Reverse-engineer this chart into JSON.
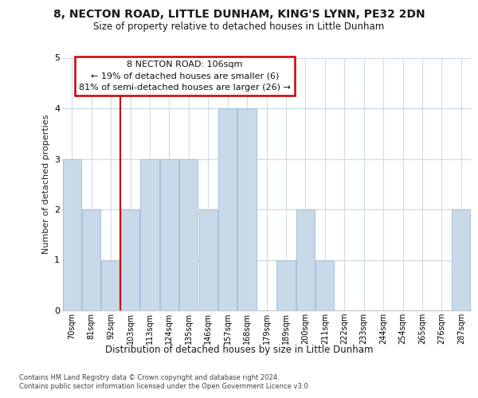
{
  "title1": "8, NECTON ROAD, LITTLE DUNHAM, KING'S LYNN, PE32 2DN",
  "title2": "Size of property relative to detached houses in Little Dunham",
  "xlabel": "Distribution of detached houses by size in Little Dunham",
  "ylabel": "Number of detached properties",
  "bins": [
    "70sqm",
    "81sqm",
    "92sqm",
    "103sqm",
    "113sqm",
    "124sqm",
    "135sqm",
    "146sqm",
    "157sqm",
    "168sqm",
    "179sqm",
    "189sqm",
    "200sqm",
    "211sqm",
    "222sqm",
    "233sqm",
    "244sqm",
    "254sqm",
    "265sqm",
    "276sqm",
    "287sqm"
  ],
  "values": [
    3,
    2,
    1,
    2,
    3,
    3,
    3,
    2,
    4,
    4,
    0,
    1,
    2,
    1,
    0,
    0,
    0,
    0,
    0,
    0,
    2
  ],
  "bar_color": "#c8daea",
  "bar_edge_color": "#a8c0d8",
  "property_line_bin": 3,
  "annotation_line1": "8 NECTON ROAD: 106sqm",
  "annotation_line2": "← 19% of detached houses are smaller (6)",
  "annotation_line3": "81% of semi-detached houses are larger (26) →",
  "ann_box_fc": "#ffffff",
  "ann_box_ec": "#cc0000",
  "vline_color": "#cc0000",
  "footnote1": "Contains HM Land Registry data © Crown copyright and database right 2024.",
  "footnote2": "Contains public sector information licensed under the Open Government Licence v3.0.",
  "ylim_max": 5,
  "bg_color": "#ffffff",
  "grid_color": "#d0dce8"
}
